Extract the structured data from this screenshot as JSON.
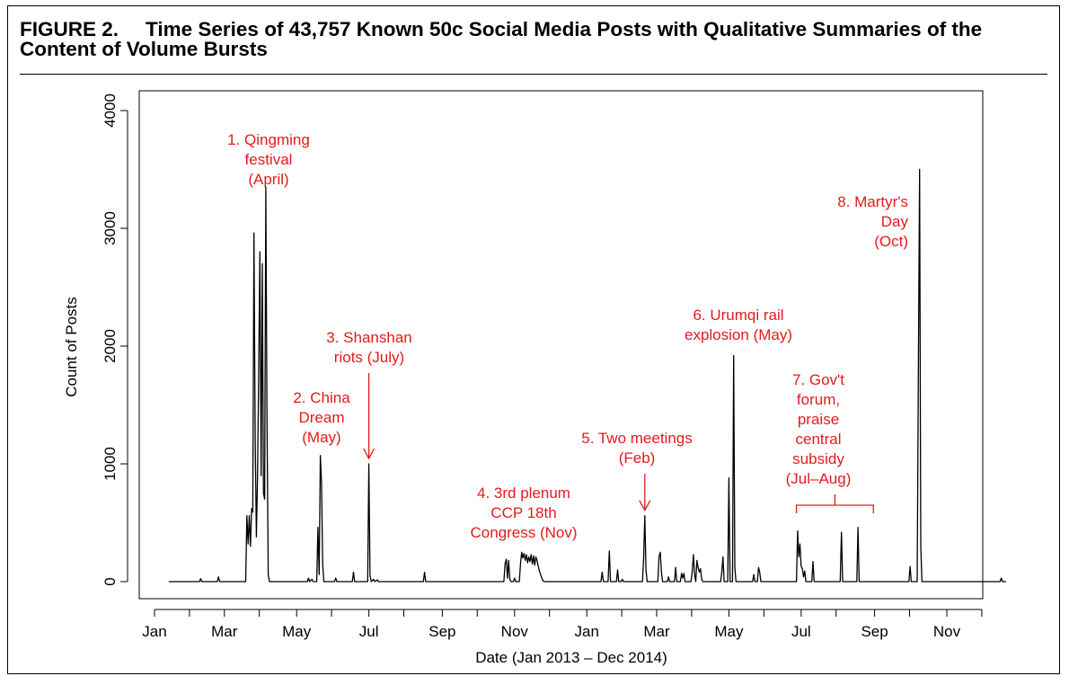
{
  "figure": {
    "number": "FIGURE 2.",
    "title_line1": "Time Series of 43,757 Known 50c Social Media Posts with Qualitative Summaries of the",
    "title_line2": "Content of Volume Bursts"
  },
  "chart_data": {
    "type": "line",
    "xlabel": "Date (Jan 2013 – Dec 2014)",
    "ylabel": "Count of Posts",
    "xlim": [
      "2013-01-01",
      "2014-12-31"
    ],
    "ylim": [
      0,
      4000
    ],
    "grid": false,
    "x_tick_labels": [
      "Jan",
      "Mar",
      "May",
      "Jul",
      "Sep",
      "Nov",
      "Jan",
      "Mar",
      "May",
      "Jul",
      "Sep",
      "Nov"
    ],
    "x_tick_dates": [
      "2013-01-01",
      "2013-03-01",
      "2013-05-01",
      "2013-07-01",
      "2013-09-01",
      "2013-11-01",
      "2014-01-01",
      "2014-03-01",
      "2014-05-01",
      "2014-07-01",
      "2014-09-01",
      "2014-11-01"
    ],
    "y_ticks": [
      0,
      1000,
      2000,
      3000,
      4000
    ],
    "y_tick_labels": [
      "0",
      "1000",
      "2000",
      "3000",
      "4000"
    ],
    "series": [
      {
        "color": "#000000",
        "points": [
          [
            "2013-01-13",
            0
          ],
          [
            "2013-02-08",
            0
          ],
          [
            "2013-02-09",
            25
          ],
          [
            "2013-02-10",
            0
          ],
          [
            "2013-02-23",
            0
          ],
          [
            "2013-02-24",
            40
          ],
          [
            "2013-02-25",
            0
          ],
          [
            "2013-03-19",
            0
          ],
          [
            "2013-03-20",
            560
          ],
          [
            "2013-03-21",
            320
          ],
          [
            "2013-03-22",
            560
          ],
          [
            "2013-03-23",
            300
          ],
          [
            "2013-03-24",
            620
          ],
          [
            "2013-03-25",
            590
          ],
          [
            "2013-03-26",
            2960
          ],
          [
            "2013-03-27",
            1200
          ],
          [
            "2013-03-28",
            380
          ],
          [
            "2013-03-29",
            900
          ],
          [
            "2013-03-30",
            1800
          ],
          [
            "2013-03-31",
            2800
          ],
          [
            "2013-04-01",
            900
          ],
          [
            "2013-04-02",
            2700
          ],
          [
            "2013-04-03",
            750
          ],
          [
            "2013-04-04",
            700
          ],
          [
            "2013-04-05",
            3350
          ],
          [
            "2013-04-06",
            1400
          ],
          [
            "2013-04-07",
            60
          ],
          [
            "2013-04-08",
            0
          ],
          [
            "2013-05-10",
            0
          ],
          [
            "2013-05-11",
            30
          ],
          [
            "2013-05-12",
            0
          ],
          [
            "2013-05-14",
            20
          ],
          [
            "2013-05-15",
            0
          ],
          [
            "2013-05-18",
            0
          ],
          [
            "2013-05-19",
            460
          ],
          [
            "2013-05-20",
            60
          ],
          [
            "2013-05-21",
            1070
          ],
          [
            "2013-05-22",
            850
          ],
          [
            "2013-05-23",
            150
          ],
          [
            "2013-05-24",
            0
          ],
          [
            "2013-06-02",
            0
          ],
          [
            "2013-06-03",
            30
          ],
          [
            "2013-06-04",
            0
          ],
          [
            "2013-06-17",
            0
          ],
          [
            "2013-06-18",
            80
          ],
          [
            "2013-06-19",
            0
          ],
          [
            "2013-06-30",
            0
          ],
          [
            "2013-07-01",
            1000
          ],
          [
            "2013-07-02",
            50
          ],
          [
            "2013-07-03",
            0
          ],
          [
            "2013-07-05",
            20
          ],
          [
            "2013-07-06",
            0
          ],
          [
            "2013-07-08",
            15
          ],
          [
            "2013-07-09",
            0
          ],
          [
            "2013-08-16",
            0
          ],
          [
            "2013-08-17",
            80
          ],
          [
            "2013-08-18",
            0
          ],
          [
            "2013-10-23",
            0
          ],
          [
            "2013-10-24",
            150
          ],
          [
            "2013-10-25",
            190
          ],
          [
            "2013-10-26",
            30
          ],
          [
            "2013-10-27",
            180
          ],
          [
            "2013-10-28",
            20
          ],
          [
            "2013-10-29",
            0
          ],
          [
            "2013-10-31",
            0
          ],
          [
            "2013-11-01",
            30
          ],
          [
            "2013-11-02",
            0
          ],
          [
            "2013-11-05",
            0
          ],
          [
            "2013-11-06",
            150
          ],
          [
            "2013-11-07",
            250
          ],
          [
            "2013-11-08",
            200
          ],
          [
            "2013-11-09",
            240
          ],
          [
            "2013-11-10",
            180
          ],
          [
            "2013-11-11",
            230
          ],
          [
            "2013-11-12",
            160
          ],
          [
            "2013-11-13",
            210
          ],
          [
            "2013-11-14",
            170
          ],
          [
            "2013-11-15",
            230
          ],
          [
            "2013-11-16",
            150
          ],
          [
            "2013-11-17",
            220
          ],
          [
            "2013-11-18",
            140
          ],
          [
            "2013-11-19",
            210
          ],
          [
            "2013-11-20",
            180
          ],
          [
            "2013-11-21",
            130
          ],
          [
            "2013-11-22",
            90
          ],
          [
            "2013-11-23",
            60
          ],
          [
            "2013-11-24",
            30
          ],
          [
            "2013-11-25",
            10
          ],
          [
            "2013-11-26",
            0
          ],
          [
            "2014-01-13",
            0
          ],
          [
            "2014-01-14",
            80
          ],
          [
            "2014-01-15",
            0
          ],
          [
            "2014-01-19",
            0
          ],
          [
            "2014-01-20",
            260
          ],
          [
            "2014-01-21",
            0
          ],
          [
            "2014-01-26",
            0
          ],
          [
            "2014-01-27",
            100
          ],
          [
            "2014-01-28",
            0
          ],
          [
            "2014-01-30",
            0
          ],
          [
            "2014-01-31",
            20
          ],
          [
            "2014-02-01",
            0
          ],
          [
            "2014-02-17",
            0
          ],
          [
            "2014-02-18",
            200
          ],
          [
            "2014-02-19",
            560
          ],
          [
            "2014-02-20",
            100
          ],
          [
            "2014-02-21",
            0
          ],
          [
            "2014-03-02",
            0
          ],
          [
            "2014-03-03",
            210
          ],
          [
            "2014-03-04",
            250
          ],
          [
            "2014-03-05",
            80
          ],
          [
            "2014-03-06",
            0
          ],
          [
            "2014-03-10",
            0
          ],
          [
            "2014-03-11",
            40
          ],
          [
            "2014-03-12",
            0
          ],
          [
            "2014-03-16",
            0
          ],
          [
            "2014-03-17",
            120
          ],
          [
            "2014-03-18",
            0
          ],
          [
            "2014-03-21",
            0
          ],
          [
            "2014-03-22",
            70
          ],
          [
            "2014-03-23",
            30
          ],
          [
            "2014-03-24",
            70
          ],
          [
            "2014-03-25",
            0
          ],
          [
            "2014-03-30",
            0
          ],
          [
            "2014-03-31",
            80
          ],
          [
            "2014-04-01",
            230
          ],
          [
            "2014-04-02",
            60
          ],
          [
            "2014-04-03",
            0
          ],
          [
            "2014-04-04",
            180
          ],
          [
            "2014-04-05",
            120
          ],
          [
            "2014-04-06",
            80
          ],
          [
            "2014-04-07",
            110
          ],
          [
            "2014-04-08",
            20
          ],
          [
            "2014-04-09",
            0
          ],
          [
            "2014-04-24",
            0
          ],
          [
            "2014-04-25",
            80
          ],
          [
            "2014-04-26",
            210
          ],
          [
            "2014-04-27",
            0
          ],
          [
            "2014-04-30",
            0
          ],
          [
            "2014-05-01",
            880
          ],
          [
            "2014-05-02",
            0
          ],
          [
            "2014-05-04",
            0
          ],
          [
            "2014-05-05",
            1920
          ],
          [
            "2014-05-06",
            120
          ],
          [
            "2014-05-07",
            0
          ],
          [
            "2014-05-21",
            0
          ],
          [
            "2014-05-22",
            60
          ],
          [
            "2014-05-23",
            0
          ],
          [
            "2014-05-25",
            0
          ],
          [
            "2014-05-26",
            120
          ],
          [
            "2014-05-27",
            80
          ],
          [
            "2014-05-28",
            0
          ],
          [
            "2014-06-27",
            0
          ],
          [
            "2014-06-28",
            430
          ],
          [
            "2014-06-29",
            210
          ],
          [
            "2014-06-30",
            320
          ],
          [
            "2014-07-01",
            130
          ],
          [
            "2014-07-02",
            110
          ],
          [
            "2014-07-03",
            40
          ],
          [
            "2014-07-04",
            90
          ],
          [
            "2014-07-05",
            0
          ],
          [
            "2014-07-10",
            0
          ],
          [
            "2014-07-11",
            170
          ],
          [
            "2014-07-12",
            0
          ],
          [
            "2014-08-03",
            0
          ],
          [
            "2014-08-04",
            420
          ],
          [
            "2014-08-05",
            0
          ],
          [
            "2014-08-17",
            0
          ],
          [
            "2014-08-18",
            460
          ],
          [
            "2014-08-19",
            0
          ],
          [
            "2014-09-30",
            0
          ],
          [
            "2014-10-01",
            130
          ],
          [
            "2014-10-02",
            0
          ],
          [
            "2014-10-07",
            0
          ],
          [
            "2014-10-08",
            1900
          ],
          [
            "2014-10-09",
            3500
          ],
          [
            "2014-10-10",
            300
          ],
          [
            "2014-10-11",
            0
          ],
          [
            "2014-12-16",
            0
          ],
          [
            "2014-12-17",
            30
          ],
          [
            "2014-12-18",
            0
          ],
          [
            "2014-12-21",
            0
          ]
        ]
      }
    ],
    "annotations": [
      {
        "lines": [
          "1. Qingming",
          "festival",
          "(April)"
        ],
        "color": "#e31a1c"
      },
      {
        "lines": [
          "2. China",
          "Dream",
          "(May)"
        ],
        "color": "#e31a1c"
      },
      {
        "lines": [
          "3. Shanshan",
          "riots (July)"
        ],
        "color": "#e31a1c",
        "arrow_to": [
          "2013-07-01",
          1000
        ]
      },
      {
        "lines": [
          "4. 3rd plenum",
          "CCP 18th",
          "Congress (Nov)"
        ],
        "color": "#e31a1c"
      },
      {
        "lines": [
          "5. Two meetings",
          "(Feb)"
        ],
        "color": "#e31a1c",
        "arrow_to": [
          "2014-02-19",
          560
        ]
      },
      {
        "lines": [
          "6. Urumqi rail",
          "explosion (May)"
        ],
        "color": "#e31a1c"
      },
      {
        "lines": [
          "7. Gov't",
          "forum,",
          "praise",
          "central",
          "subsidy",
          "(Jul–Aug)"
        ],
        "color": "#e31a1c",
        "bracket": [
          "2014-06-27",
          "2014-08-31"
        ]
      },
      {
        "lines": [
          "8. Martyr's",
          "Day",
          "(Oct)"
        ],
        "color": "#e31a1c"
      }
    ]
  }
}
